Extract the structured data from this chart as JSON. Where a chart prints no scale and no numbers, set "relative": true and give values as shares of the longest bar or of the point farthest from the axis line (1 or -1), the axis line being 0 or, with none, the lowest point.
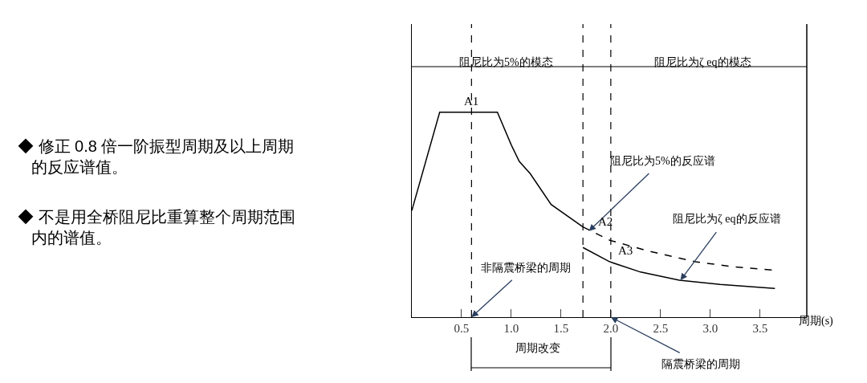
{
  "chart_data": {
    "type": "line",
    "relative": true,
    "xlabel": "周期(s)",
    "xlim": [
      0,
      3.97
    ],
    "xticks": [
      0.5,
      {
        "value": 1.0,
        "label": "1.0"
      },
      1.5,
      {
        "value": 2.0,
        "label": "2.0"
      },
      2.5,
      {
        "value": 3.0,
        "label": "3.0"
      },
      3.5
    ],
    "tick_labels": "x",
    "marker": "none",
    "series": [
      {
        "color": "#000000",
        "line_style": "solid",
        "x": [
          0,
          0.28,
          0.86,
          1.0,
          1.08,
          1.19,
          1.4,
          1.72
        ],
        "values": [
          0.52,
          1,
          1,
          0.84,
          0.76,
          0.7,
          0.55,
          0.44
        ]
      },
      {
        "color": "#000000",
        "line_style": "dashed",
        "x": [
          1.72,
          1.99,
          2.4,
          2.85,
          3.25,
          3.63
        ],
        "values": [
          0.44,
          0.375,
          0.32,
          0.27,
          0.245,
          0.23
        ]
      },
      {
        "color": "#000000",
        "line_style": "solid",
        "x": [
          1.72,
          1.99,
          2.3,
          2.69,
          3.1,
          3.65
        ],
        "values": [
          0.34,
          0.27,
          0.22,
          0.18,
          0.16,
          0.14
        ]
      }
    ],
    "ref_lines": [
      {
        "axis": "x",
        "value": 0.6,
        "color": "#000000",
        "line_style": "dashed"
      },
      {
        "axis": "x",
        "value": 1.72,
        "color": "#000000",
        "line_style": "dashed"
      },
      {
        "axis": "x",
        "value": 2.0,
        "color": "#000000",
        "line_style": "dashed"
      }
    ],
    "annotations": [
      "阻尼比为5%的模态",
      "阻尼比为ζ eq的模态",
      {
        "text": "A1",
        "x": 0.6,
        "y": 1
      },
      "阻尼比为5%的反应谱",
      {
        "text": "A2",
        "x": 1.77,
        "y": 0.42
      },
      "阻尼比为ζ eq的反应谱",
      {
        "text": "A3",
        "x": 2.0,
        "y": 0.27
      },
      "非隔震桥梁的周期",
      "周期改变",
      "隔震桥梁的周期",
      "◆ 修正 0.8 倍一阶振型周期及以上周期的反应谱值。",
      "◆ 不是用全桥阻尼比重算整个周期范围内的谱值。"
    ]
  }
}
